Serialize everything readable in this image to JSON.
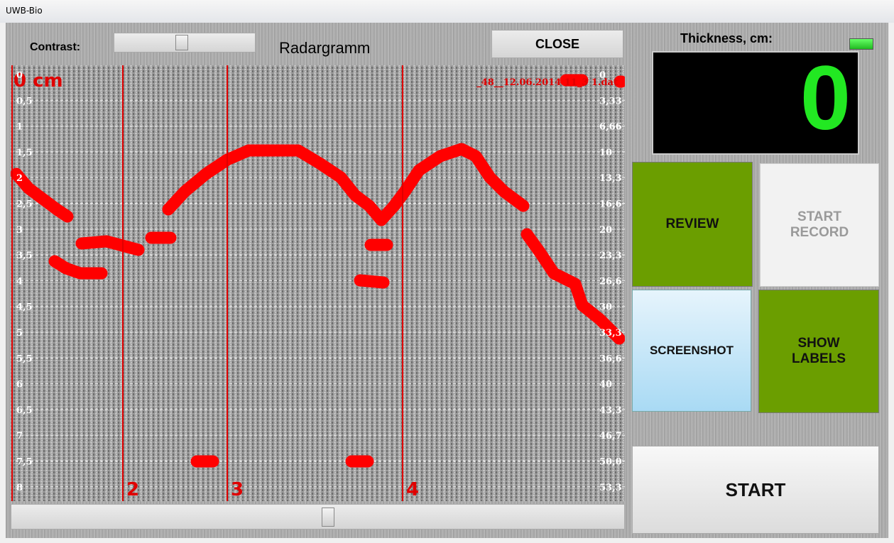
{
  "window_title": "UWB-Bio",
  "contrast_label": "Contrast:",
  "panel_title": "Radargramm",
  "close_button": "CLOSE",
  "thickness_label": "Thickness, cm:",
  "thickness_value": "0",
  "buttons": {
    "review": "REVIEW",
    "start_record": "START RECORD",
    "screenshot": "SCREENSHOT",
    "show_labels": "SHOW LABELS",
    "start": "START"
  },
  "radargram": {
    "depth_label": "0 cm",
    "file_name": "_48__12.06.2014 11_3 1.dat",
    "left_scale": [
      "0",
      "0,5",
      "1",
      "1,5",
      "2",
      "2,5",
      "3",
      "3,5",
      "4",
      "4,5",
      "5",
      "5,5",
      "6",
      "6,5",
      "7",
      "7,5",
      "8"
    ],
    "right_scale": [
      "0",
      "3,33",
      "6,66",
      "10",
      "13,3",
      "16,6",
      "20",
      "23,3",
      "26,6",
      "30",
      "33,3",
      "36,6",
      "40",
      "43,3",
      "46,7",
      "50,0",
      "53,3"
    ],
    "markers": [
      "2",
      "3",
      "4"
    ]
  }
}
